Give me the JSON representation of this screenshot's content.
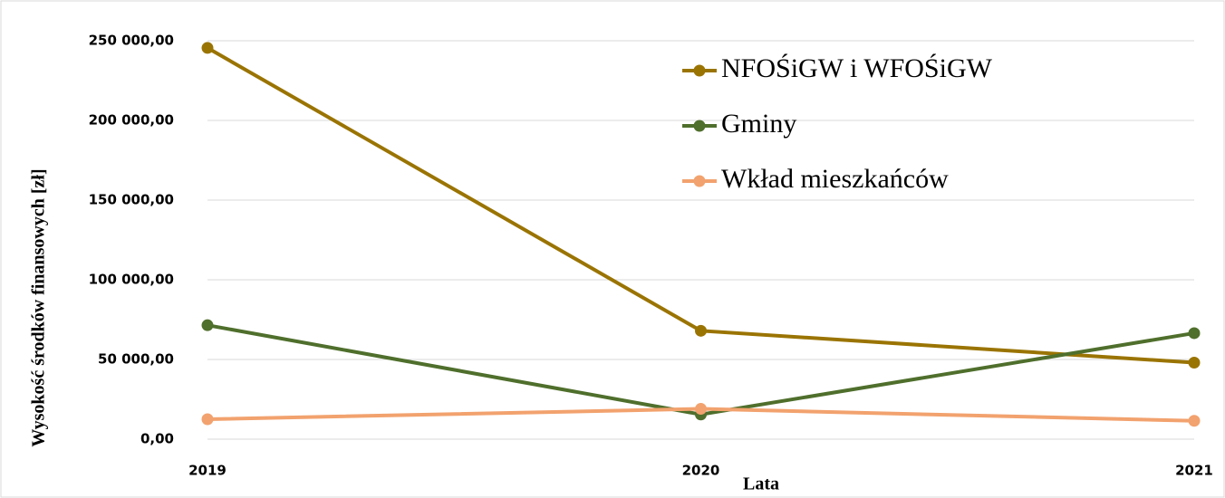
{
  "chart_data": {
    "type": "line",
    "x_label": "Lata",
    "y_label": "Wysokość środków finansowych [zł]",
    "categories": [
      "2019",
      "2020",
      "2021"
    ],
    "series": [
      {
        "name": "NFOŚiGW i WFOŚiGW",
        "color": "#9a7403",
        "values": [
          245500,
          68000,
          48000
        ]
      },
      {
        "name": "Gminy",
        "color": "#4f6f2c",
        "values": [
          71500,
          15500,
          66500
        ]
      },
      {
        "name": "Wkład mieszkańców",
        "color": "#f2a26e",
        "values": [
          12500,
          19000,
          11500
        ]
      }
    ],
    "ylim": [
      0,
      250000
    ],
    "yticks": [
      {
        "value": 0,
        "label": "0,00"
      },
      {
        "value": 50000,
        "label": "50 000,00"
      },
      {
        "value": 100000,
        "label": "100 000,00"
      },
      {
        "value": 150000,
        "label": "150 000,00"
      },
      {
        "value": 200000,
        "label": "200 000,00"
      },
      {
        "value": 250000,
        "label": "250 000,00"
      }
    ],
    "grid": true,
    "legend": "top-right"
  }
}
